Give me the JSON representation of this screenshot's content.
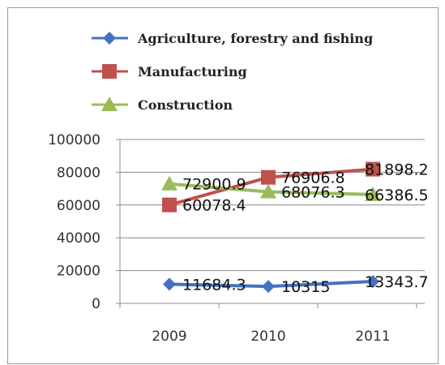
{
  "chart_data": {
    "type": "line",
    "categories": [
      "2009",
      "2010",
      "2011"
    ],
    "series": [
      {
        "name": "Agriculture, forestry and fishing",
        "values": [
          11684.3,
          10315,
          13343.7
        ],
        "labels": [
          "11684.3",
          "10315",
          "13343.7"
        ],
        "color": "#4472C4",
        "marker": "diamond"
      },
      {
        "name": "Manufacturing",
        "values": [
          60078.4,
          76906.8,
          81898.2
        ],
        "labels": [
          "60078.4",
          "76906.8",
          "81898.2"
        ],
        "color": "#C0504D",
        "marker": "square"
      },
      {
        "name": "Construction",
        "values": [
          72900.9,
          68076.3,
          66386.5
        ],
        "labels": [
          "72900.9",
          "68076.3",
          "66386.5"
        ],
        "color": "#9BBB59",
        "marker": "triangle"
      }
    ],
    "ylim": [
      0,
      100000
    ],
    "yticks": [
      "0",
      "20000",
      "40000",
      "60000",
      "80000",
      "100000"
    ],
    "grid": true,
    "legend_position": "top-left"
  }
}
